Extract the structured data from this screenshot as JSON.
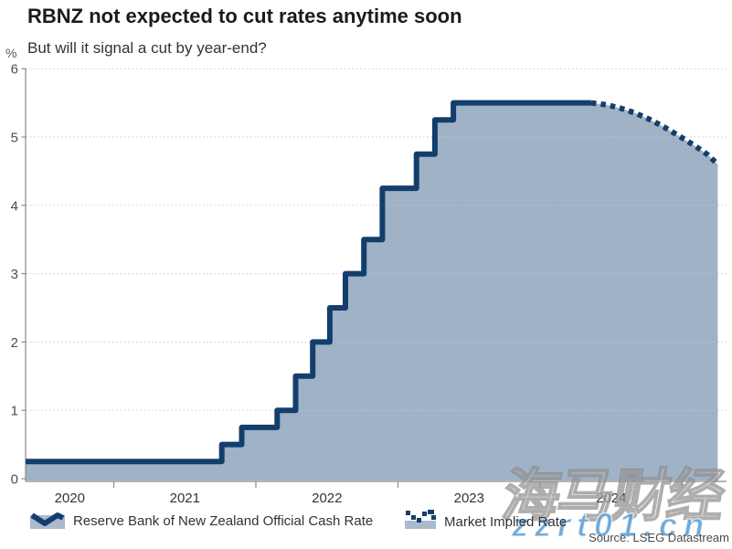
{
  "chart_data": {
    "type": "area",
    "title": "RBNZ not expected to cut rates anytime soon",
    "subtitle": "But will it signal a cut by year-end?",
    "unit": "%",
    "ylim": [
      0,
      6
    ],
    "yticks": [
      0,
      1,
      2,
      3,
      4,
      5,
      6
    ],
    "year_labels": [
      "2020",
      "2021",
      "2022",
      "2023",
      "2024"
    ],
    "x_range_years": [
      2020.38,
      2025.25
    ],
    "grid": "horizontal-dotted",
    "legend_position": "bottom",
    "series": [
      {
        "name": "Reserve Bank of New Zealand Official Cash Rate",
        "style": "solid-step",
        "steps_year_value": [
          [
            2020.38,
            0.25
          ],
          [
            2021.76,
            0.5
          ],
          [
            2021.9,
            0.75
          ],
          [
            2022.15,
            1.0
          ],
          [
            2022.28,
            1.5
          ],
          [
            2022.4,
            2.0
          ],
          [
            2022.52,
            2.5
          ],
          [
            2022.63,
            3.0
          ],
          [
            2022.76,
            3.5
          ],
          [
            2022.89,
            4.25
          ],
          [
            2023.13,
            4.75
          ],
          [
            2023.26,
            5.25
          ],
          [
            2023.39,
            5.5
          ]
        ],
        "end_year": 2024.36
      },
      {
        "name": "Market Implied Rate",
        "style": "dotted-line",
        "points_year_value": [
          [
            2024.36,
            5.5
          ],
          [
            2024.47,
            5.47
          ],
          [
            2024.57,
            5.42
          ],
          [
            2024.67,
            5.35
          ],
          [
            2024.77,
            5.26
          ],
          [
            2024.87,
            5.15
          ],
          [
            2024.99,
            5.0
          ],
          [
            2025.09,
            4.87
          ],
          [
            2025.18,
            4.74
          ],
          [
            2025.25,
            4.6
          ]
        ]
      }
    ],
    "colors": {
      "line": "#133E6C",
      "fill": "#9FB2C6",
      "grid": "#C8C8C8",
      "axis": "#8A8A8A",
      "tick_label": "#4D4D4D",
      "year_label": "#333333"
    }
  },
  "legend": {
    "items": [
      {
        "label": "Reserve Bank of New Zealand Official Cash Rate",
        "icon": "area-wave-solid"
      },
      {
        "label": "Market Implied Rate",
        "icon": "area-wave-dotted"
      }
    ]
  },
  "source": {
    "label": "Source: LSEG Datastream"
  },
  "watermarks": {
    "cjk": "海马财经",
    "url": "zzrt01.cn"
  }
}
